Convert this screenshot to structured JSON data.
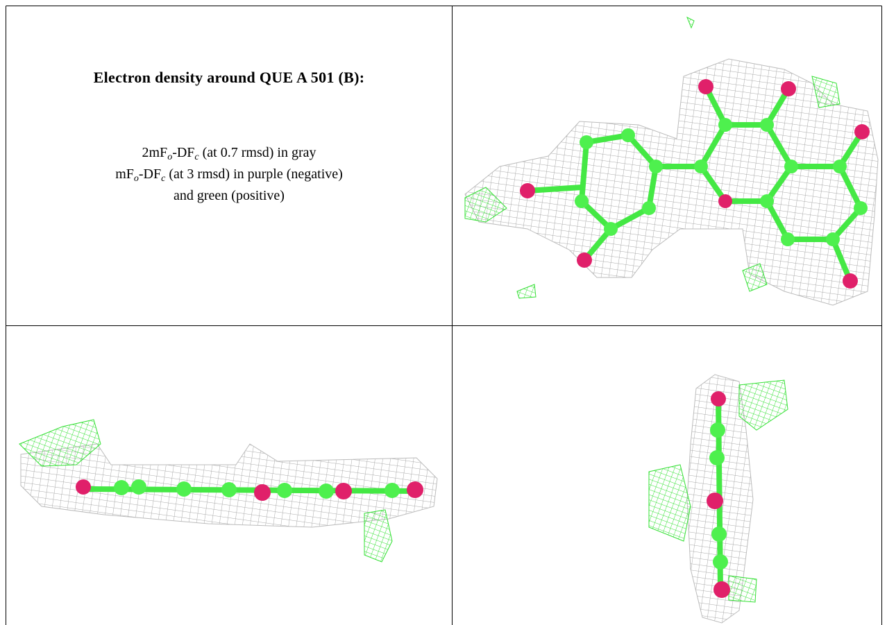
{
  "caption": {
    "title": "Electron density around QUE A 501 (B):",
    "lines": [
      [
        "2mF",
        "o",
        "-DF",
        "c",
        " (at 0.7 rmsd) in gray"
      ],
      [
        "mF",
        "o",
        "-DF",
        "c",
        " (at 3 rmsd) in purple (negative)"
      ],
      [
        "and green (positive)"
      ]
    ]
  }
}
